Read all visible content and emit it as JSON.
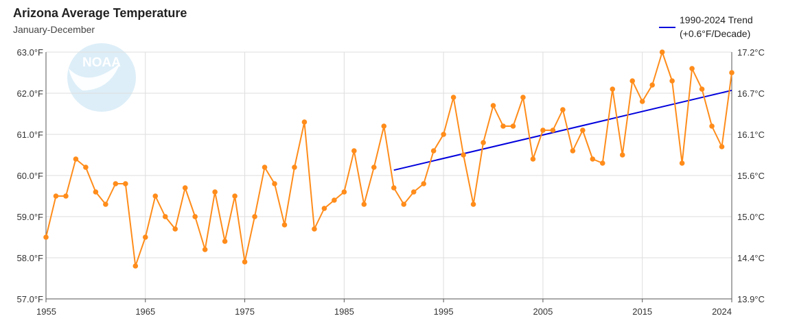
{
  "chart_data": {
    "type": "line",
    "title": "Arizona Average Temperature",
    "subtitle": "January-December",
    "xlim": [
      1955,
      2024
    ],
    "ylim": [
      57.0,
      63.0
    ],
    "x_ticks": [
      1955,
      1965,
      1975,
      1985,
      1995,
      2005,
      2015,
      2024
    ],
    "y_left_ticks": [
      "57.0°F",
      "58.0°F",
      "59.0°F",
      "60.0°F",
      "61.0°F",
      "62.0°F",
      "63.0°F"
    ],
    "y_right_ticks": [
      "13.9°C",
      "14.4°C",
      "15.0°C",
      "15.6°C",
      "16.1°C",
      "16.7°C",
      "17.2°C"
    ],
    "grid": true,
    "legend_position": "top-right",
    "watermark": "NOAA",
    "colors": {
      "series": "#ff8c1a",
      "trend": "#0000dd",
      "grid": "#dddddd",
      "watermark": "#ddeef8"
    },
    "series": [
      {
        "x": [
          1955,
          1956,
          1957,
          1958,
          1959,
          1960,
          1961,
          1962,
          1963,
          1964,
          1965,
          1966,
          1967,
          1968,
          1969,
          1970,
          1971,
          1972,
          1973,
          1974,
          1975,
          1976,
          1977,
          1978,
          1979,
          1980,
          1981,
          1982,
          1983,
          1984,
          1985,
          1986,
          1987,
          1988,
          1989,
          1990,
          1991,
          1992,
          1993,
          1994,
          1995,
          1996,
          1997,
          1998,
          1999,
          2000,
          2001,
          2002,
          2003,
          2004,
          2005,
          2006,
          2007,
          2008,
          2009,
          2010,
          2011,
          2012,
          2013,
          2014,
          2015,
          2016,
          2017,
          2018,
          2019,
          2020,
          2021,
          2022,
          2023,
          2024
        ],
        "values": [
          58.5,
          59.5,
          59.5,
          60.4,
          60.2,
          59.6,
          59.3,
          59.8,
          59.8,
          57.8,
          58.5,
          59.5,
          59.0,
          58.7,
          59.7,
          59.0,
          58.2,
          59.6,
          58.4,
          59.5,
          57.9,
          59.0,
          60.2,
          59.8,
          58.8,
          60.2,
          61.3,
          58.7,
          59.2,
          59.4,
          59.6,
          60.6,
          59.3,
          60.2,
          61.2,
          59.7,
          59.3,
          59.6,
          59.8,
          60.6,
          61.0,
          61.9,
          60.5,
          59.3,
          60.8,
          61.7,
          61.2,
          61.2,
          61.9,
          60.4,
          61.1,
          61.1,
          61.6,
          60.6,
          61.1,
          60.4,
          60.3,
          62.1,
          60.5,
          62.3,
          61.8,
          62.2,
          63.0,
          62.3,
          60.3,
          62.6,
          62.1,
          61.2,
          60.7,
          62.5
        ]
      },
      {
        "name": "1990-2024 Trend",
        "subtitle": "(+0.6°F/Decade)",
        "x": [
          1990,
          2024
        ],
        "values": [
          60.13,
          62.07
        ]
      }
    ]
  }
}
